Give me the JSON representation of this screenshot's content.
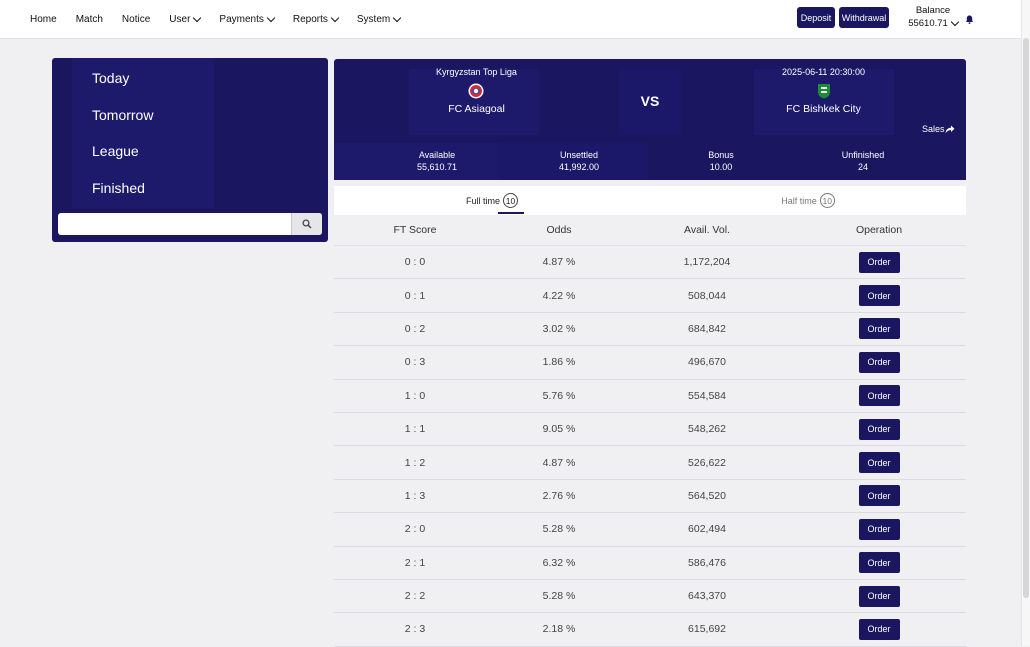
{
  "nav": {
    "items": [
      {
        "label": "Home",
        "dropdown": false
      },
      {
        "label": "Match",
        "dropdown": false
      },
      {
        "label": "Notice",
        "dropdown": false
      },
      {
        "label": "User",
        "dropdown": true
      },
      {
        "label": "Payments",
        "dropdown": true
      },
      {
        "label": "Reports",
        "dropdown": true
      },
      {
        "label": "System",
        "dropdown": true
      }
    ],
    "deposit_label": "Deposit",
    "withdrawal_label": "Withdrawal",
    "balance_label": "Balance",
    "balance_value": "55610.71"
  },
  "sidebar": {
    "items": [
      "Today",
      "Tomorrow",
      "League",
      "Finished"
    ],
    "search": {
      "value": "",
      "placeholder": ""
    }
  },
  "match": {
    "league": "Kyrgyzstan Top Liga",
    "datetime": "2025-06-11 20:30:00",
    "home_team": "FC Asiagoal",
    "away_team": "FC Bishkek City",
    "vs_label": "VS",
    "sales_label": "Sales",
    "stats": [
      {
        "label": "Available",
        "value": "55,610.71"
      },
      {
        "label": "Unsettled",
        "value": "41,992.00"
      },
      {
        "label": "Bonus",
        "value": "10.00"
      },
      {
        "label": "Unfinished",
        "value": "24"
      }
    ]
  },
  "tabs": [
    {
      "label": "Full time",
      "count": "10",
      "active": true
    },
    {
      "label": "Half time",
      "count": "10",
      "active": false
    }
  ],
  "table": {
    "headers": [
      "FT Score",
      "Odds",
      "Avail. Vol.",
      "Operation"
    ],
    "order_label": "Order",
    "rows": [
      {
        "score": "0 : 0",
        "odds": "4.87 %",
        "vol": "1,172,204"
      },
      {
        "score": "0 : 1",
        "odds": "4.22 %",
        "vol": "508,044"
      },
      {
        "score": "0 : 2",
        "odds": "3.02 %",
        "vol": "684,842"
      },
      {
        "score": "0 : 3",
        "odds": "1.86 %",
        "vol": "496,670"
      },
      {
        "score": "1 : 0",
        "odds": "5.76 %",
        "vol": "554,584"
      },
      {
        "score": "1 : 1",
        "odds": "9.05 %",
        "vol": "548,262"
      },
      {
        "score": "1 : 2",
        "odds": "4.87 %",
        "vol": "526,622"
      },
      {
        "score": "1 : 3",
        "odds": "2.76 %",
        "vol": "564,520"
      },
      {
        "score": "2 : 0",
        "odds": "5.28 %",
        "vol": "602,494"
      },
      {
        "score": "2 : 1",
        "odds": "6.32 %",
        "vol": "586,476"
      },
      {
        "score": "2 : 2",
        "odds": "5.28 %",
        "vol": "643,370"
      },
      {
        "score": "2 : 3",
        "odds": "2.18 %",
        "vol": "615,692"
      }
    ]
  },
  "colors": {
    "brand": "#1a1760",
    "background": "#f0f0f2"
  },
  "icons": {
    "search": "search-icon",
    "bell": "bell-icon",
    "sales": "share-arrow-icon"
  }
}
